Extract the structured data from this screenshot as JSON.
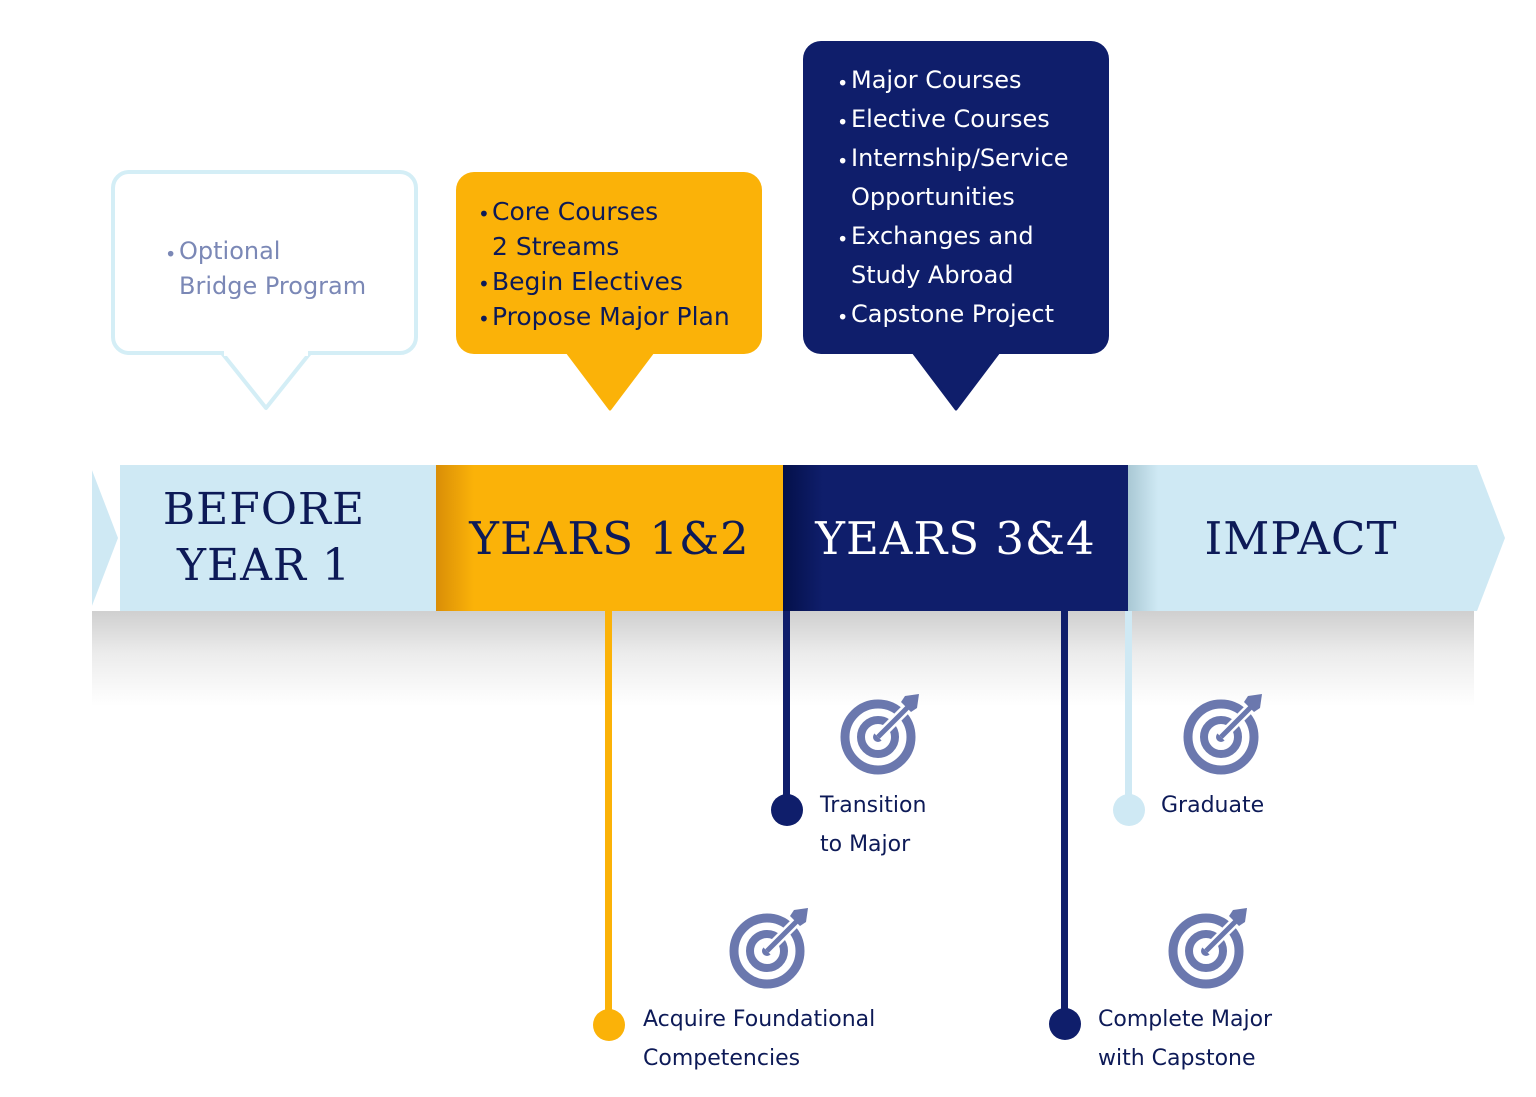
{
  "callouts": {
    "before_year_1": {
      "items": [
        "Optional\nBridge Program"
      ]
    },
    "years_1_2": {
      "items": [
        "Core Courses\n 2 Streams",
        "Begin Electives",
        "Propose Major Plan"
      ]
    },
    "years_3_4": {
      "items": [
        "Major Courses",
        "Elective Courses",
        "Internship/Service\nOpportunities",
        "Exchanges and\nStudy Abroad",
        "Capstone Project"
      ]
    }
  },
  "timeline": {
    "segments": [
      {
        "label": "BEFORE\nYEAR 1"
      },
      {
        "label": "YEARS 1&2"
      },
      {
        "label": "YEARS 3&4"
      },
      {
        "label": "IMPACT"
      }
    ]
  },
  "milestones": {
    "acquire": "Acquire Foundational\nCompetencies",
    "transition": "Transition\nto Major",
    "complete": "Complete Major\nwith Capstone",
    "graduate": "Graduate"
  },
  "colors": {
    "navy": "#0f1e6b",
    "gold": "#fbb208",
    "light_blue": "#cfe9f4",
    "icon_periwinkle": "#6b78ae"
  },
  "icons": [
    "target-icon"
  ]
}
